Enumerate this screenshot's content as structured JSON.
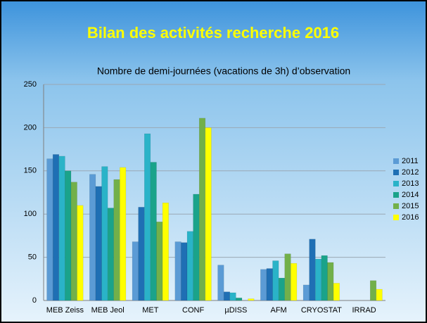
{
  "header": {
    "title": "Bilan des activités recherche 2016"
  },
  "chart_data": {
    "type": "bar",
    "title": "Nombre de demi-journées (vacations de 3h) d’observation",
    "categories": [
      "MEB Zeiss",
      "MEB Jeol",
      "MET",
      "CONF",
      "µDISS",
      "AFM",
      "CRYOSTAT",
      "IRRAD"
    ],
    "series": [
      {
        "name": "2011",
        "color": "#5b9bd5",
        "values": [
          164,
          146,
          68,
          68,
          41,
          36,
          18,
          0
        ]
      },
      {
        "name": "2012",
        "color": "#1f6fb4",
        "values": [
          169,
          132,
          108,
          67,
          10,
          37,
          71,
          0
        ]
      },
      {
        "name": "2013",
        "color": "#2ab3c8",
        "values": [
          167,
          155,
          193,
          80,
          9,
          46,
          48,
          0
        ]
      },
      {
        "name": "2014",
        "color": "#1aa38a",
        "values": [
          150,
          107,
          160,
          123,
          3,
          26,
          52,
          0
        ]
      },
      {
        "name": "2015",
        "color": "#72b04a",
        "values": [
          137,
          140,
          91,
          211,
          0,
          54,
          44,
          23
        ]
      },
      {
        "name": "2016",
        "color": "#ffff00",
        "values": [
          110,
          154,
          113,
          200,
          2,
          43,
          20,
          13
        ]
      }
    ],
    "ylim": [
      0,
      250
    ],
    "yticks": [
      0,
      50,
      100,
      150,
      200,
      250
    ],
    "grid": true,
    "legend": "right"
  }
}
